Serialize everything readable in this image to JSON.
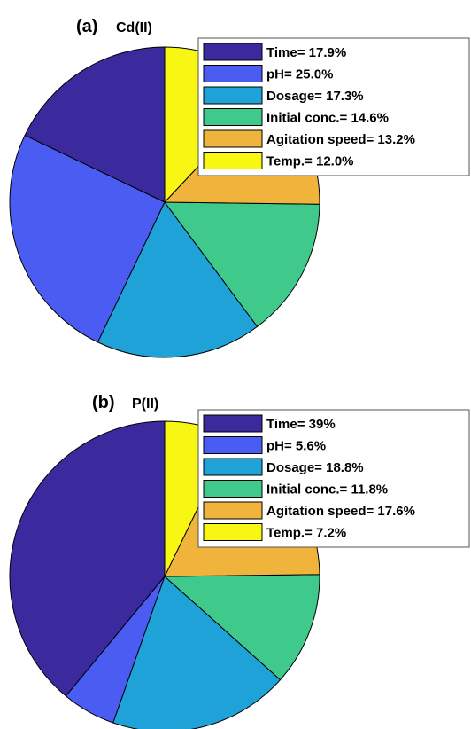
{
  "chart_data": [
    {
      "type": "pie",
      "panel_letter": "(a)",
      "panel_title": "Cd(II)",
      "legend_position": "top-right",
      "slices": [
        {
          "label": "Time= 17.9%",
          "value": 17.9,
          "color": "#3b2a9e"
        },
        {
          "label": "pH= 25.0%",
          "value": 25.0,
          "color": "#4a5cf2"
        },
        {
          "label": "Dosage= 17.3%",
          "value": 17.3,
          "color": "#1ea2d8"
        },
        {
          "label": "Initial conc.= 14.6%",
          "value": 14.6,
          "color": "#3fc98a"
        },
        {
          "label": "Agitation speed= 13.2%",
          "value": 13.2,
          "color": "#f0b43c"
        },
        {
          "label": "Temp.= 12.0%",
          "value": 12.0,
          "color": "#f7f713"
        }
      ]
    },
    {
      "type": "pie",
      "panel_letter": "(b)",
      "panel_title": "P(II)",
      "legend_position": "top-right",
      "slices": [
        {
          "label": "Time= 39%",
          "value": 39.0,
          "color": "#3b2a9e"
        },
        {
          "label": "pH= 5.6%",
          "value": 5.6,
          "color": "#4a5cf2"
        },
        {
          "label": "Dosage= 18.8%",
          "value": 18.8,
          "color": "#1ea2d8"
        },
        {
          "label": "Initial conc.= 11.8%",
          "value": 11.8,
          "color": "#3fc98a"
        },
        {
          "label": "Agitation speed= 17.6%",
          "value": 17.6,
          "color": "#f0b43c"
        },
        {
          "label": "Temp.= 7.2%",
          "value": 7.2,
          "color": "#f7f713"
        }
      ]
    }
  ]
}
